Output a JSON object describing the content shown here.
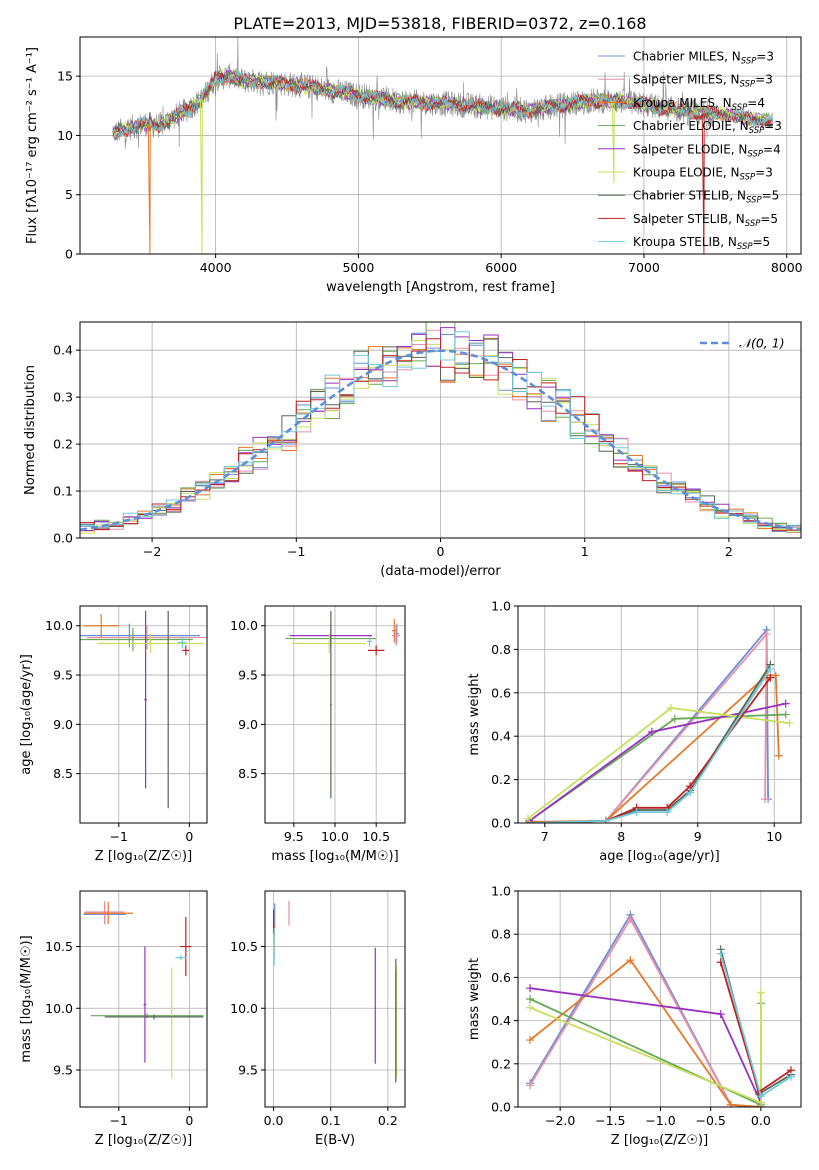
{
  "figure_title": "PLATE=2013, MJD=53818, FIBERID=0372, z=0.168",
  "colors": {
    "chabrier_miles": "#6a8fd8",
    "salpeter_miles": "#e990a8",
    "kroupa_miles": "#e5792a",
    "chabrier_elodie": "#66aa55",
    "salpeter_elodie": "#9b30c0",
    "kroupa_elodie": "#c8e060",
    "chabrier_stelib": "#556655",
    "salpeter_stelib": "#c02020",
    "kroupa_stelib": "#70c8d8",
    "spectrum_grey": "#888888",
    "normal_curve": "#5f8fd8"
  },
  "legend": {
    "entries": [
      {
        "prefix": "Chabrier MILES, N",
        "sub": "SSP",
        "suffix": "=3",
        "color": "#6a8fd8"
      },
      {
        "prefix": "Salpeter MILES, N",
        "sub": "SSP",
        "suffix": "=3",
        "color": "#e990a8"
      },
      {
        "prefix": "Kroupa MILES, N",
        "sub": "SSP",
        "suffix": "=4",
        "color": "#e5792a"
      },
      {
        "prefix": "Chabrier ELODIE, N",
        "sub": "SSP",
        "suffix": "=3",
        "color": "#66aa55"
      },
      {
        "prefix": "Salpeter ELODIE, N",
        "sub": "SSP",
        "suffix": "=4",
        "color": "#9b30c0"
      },
      {
        "prefix": "Kroupa ELODIE, N",
        "sub": "SSP",
        "suffix": "=3",
        "color": "#c8e060"
      },
      {
        "prefix": "Chabrier STELIB, N",
        "sub": "SSP",
        "suffix": "=5",
        "color": "#556655"
      },
      {
        "prefix": "Salpeter STELIB, N",
        "sub": "SSP",
        "suffix": "=5",
        "color": "#c02020"
      },
      {
        "prefix": "Kroupa STELIB, N",
        "sub": "SSP",
        "suffix": "=5",
        "color": "#70c8d8"
      }
    ]
  },
  "chart_data": [
    {
      "id": "spectrum",
      "type": "line",
      "xlabel": "wavelength [Angstrom, rest frame]",
      "ylabel": "Flux [fλ10⁻¹⁷ erg cm⁻² s⁻¹ A⁻¹]",
      "xlim": [
        3050,
        8100
      ],
      "ylim": [
        0,
        18.3
      ],
      "xticks": [
        4000,
        5000,
        6000,
        7000,
        8000
      ],
      "yticks": [
        0,
        5,
        10,
        15
      ],
      "legend_position": "right",
      "continuum": {
        "x": [
          3280,
          3400,
          3500,
          3600,
          3700,
          3800,
          3900,
          4000,
          4100,
          4200,
          4400,
          4600,
          4800,
          5000,
          5200,
          5400,
          5600,
          5800,
          6000,
          6200,
          6400,
          6600,
          6800,
          7000,
          7200,
          7400,
          7600,
          7800,
          7900
        ],
        "y": [
          10.2,
          10.6,
          11.0,
          10.8,
          11.5,
          12.2,
          13.0,
          14.8,
          15.0,
          14.6,
          14.5,
          14.2,
          13.8,
          13.4,
          13.0,
          12.8,
          12.7,
          12.5,
          12.3,
          12.1,
          12.5,
          12.9,
          12.9,
          12.6,
          12.2,
          11.9,
          11.7,
          11.3,
          11.2
        ]
      },
      "dips": [
        {
          "x": 3540,
          "y": 0.0,
          "color": "#e5792a"
        },
        {
          "x": 3905,
          "y": 0.0,
          "color": "#c8e060"
        },
        {
          "x": 7420,
          "y": 0.0,
          "color": "#c02020"
        },
        {
          "x": 6790,
          "y": 6.0,
          "color": "#c8e060"
        }
      ]
    },
    {
      "id": "residuals",
      "type": "histogram",
      "xlabel": "(data-model)/error",
      "ylabel": "Normed distribution",
      "xlim": [
        -2.5,
        2.5
      ],
      "ylim": [
        0,
        0.46
      ],
      "xticks": [
        -2,
        -1,
        0,
        1,
        2
      ],
      "yticks": [
        0.0,
        0.1,
        0.2,
        0.3,
        0.4
      ],
      "bin_width": 0.1,
      "curve_label": "𝒩(0, 1)",
      "legend_position": "top-right"
    },
    {
      "id": "age-vs-Z",
      "type": "errorbar",
      "xlabel": "Z [log₁₀(Z/Z☉)]",
      "ylabel": "age  [log₁₀(age/yr)]",
      "xlim": [
        -1.55,
        0.25
      ],
      "ylim": [
        8.0,
        10.2
      ],
      "xticks": [
        -1,
        0
      ],
      "yticks": [
        8.5,
        9.0,
        9.5,
        10.0
      ],
      "points": [
        {
          "x": -0.85,
          "xerr": 1.0,
          "y": 9.9,
          "yerr": 0.12,
          "color": "#6a8fd8"
        },
        {
          "x": -0.6,
          "xerr": 0.85,
          "y": 9.88,
          "yerr": 0.12,
          "color": "#e990a8"
        },
        {
          "x": -1.25,
          "xerr": 0.25,
          "y": 10.0,
          "yerr": 0.12,
          "color": "#e5792a"
        },
        {
          "x": -0.8,
          "xerr": 0.85,
          "y": 9.86,
          "yerr": 0.12,
          "color": "#66aa55"
        },
        {
          "x": -0.62,
          "xerr": 0.02,
          "y": 9.25,
          "yerr": 0.9,
          "color": "#9b30c0"
        },
        {
          "x": -0.55,
          "xerr": 0.75,
          "y": 9.82,
          "yerr": 0.1,
          "color": "#c8e060"
        },
        {
          "x": -0.3,
          "xerr": 0.01,
          "y": 9.15,
          "yerr": 1.0,
          "color": "#556655"
        },
        {
          "x": -0.05,
          "xerr": 0.05,
          "y": 9.75,
          "yerr": 0.05,
          "color": "#c02020"
        },
        {
          "x": -0.1,
          "xerr": 0.06,
          "y": 9.83,
          "yerr": 0.06,
          "color": "#70c8d8"
        }
      ]
    },
    {
      "id": "age-vs-mass",
      "type": "errorbar",
      "xlabel": "mass [log₁₀(M/M☉)]",
      "ylabel": "",
      "xlim": [
        9.15,
        10.85
      ],
      "ylim": [
        8.0,
        10.2
      ],
      "xticks": [
        9.5,
        10.0,
        10.5
      ],
      "yticks": [
        8.5,
        9.0,
        9.5,
        10.0
      ],
      "points": [
        {
          "x": 10.75,
          "xerr": 0.03,
          "y": 9.92,
          "yerr": 0.1,
          "color": "#6a8fd8"
        },
        {
          "x": 10.74,
          "xerr": 0.05,
          "y": 9.9,
          "yerr": 0.1,
          "color": "#e990a8"
        },
        {
          "x": 10.72,
          "xerr": 0.03,
          "y": 9.95,
          "yerr": 0.12,
          "color": "#e5792a"
        },
        {
          "x": 9.95,
          "xerr": 0.55,
          "y": 9.87,
          "yerr": 0.1,
          "color": "#66aa55"
        },
        {
          "x": 9.95,
          "xerr": 0.5,
          "y": 9.9,
          "yerr": 0.1,
          "color": "#9b30c0"
        },
        {
          "x": 9.93,
          "xerr": 0.45,
          "y": 9.82,
          "yerr": 0.1,
          "color": "#c8e060"
        },
        {
          "x": 9.95,
          "xerr": 0.01,
          "y": 9.2,
          "yerr": 0.95,
          "color": "#556655"
        },
        {
          "x": 10.5,
          "xerr": 0.1,
          "y": 9.75,
          "yerr": 0.05,
          "color": "#c02020"
        },
        {
          "x": 10.42,
          "xerr": 0.03,
          "y": 9.84,
          "yerr": 0.05,
          "color": "#70c8d8"
        }
      ]
    },
    {
      "id": "weight-vs-age",
      "type": "line",
      "xlabel": "age  [log₁₀(age/yr)]",
      "ylabel": "mass weight",
      "xlim": [
        6.65,
        10.35
      ],
      "ylim": [
        0.0,
        1.0
      ],
      "xticks": [
        7,
        8,
        9,
        10
      ],
      "yticks": [
        0.0,
        0.2,
        0.4,
        0.6,
        0.8,
        1.0
      ],
      "series": [
        {
          "color": "#6a8fd8",
          "x": [
            7.8,
            9.9,
            9.92
          ],
          "y": [
            0.01,
            0.89,
            0.11
          ]
        },
        {
          "color": "#e990a8",
          "x": [
            7.8,
            9.9,
            9.88
          ],
          "y": [
            0.01,
            0.87,
            0.11
          ]
        },
        {
          "color": "#e5792a",
          "x": [
            6.8,
            7.8,
            9.9,
            10.02,
            10.06
          ],
          "y": [
            0.005,
            0.01,
            0.68,
            0.68,
            0.31
          ]
        },
        {
          "color": "#66aa55",
          "x": [
            6.8,
            8.7,
            10.15
          ],
          "y": [
            0.01,
            0.48,
            0.5
          ]
        },
        {
          "color": "#9b30c0",
          "x": [
            6.8,
            8.4,
            10.15
          ],
          "y": [
            0.01,
            0.42,
            0.55
          ]
        },
        {
          "color": "#c8e060",
          "x": [
            6.78,
            8.65,
            10.2
          ],
          "y": [
            0.02,
            0.53,
            0.46
          ]
        },
        {
          "color": "#556655",
          "x": [
            6.8,
            7.8,
            8.2,
            8.6,
            8.9,
            9.95
          ],
          "y": [
            0.0,
            0.01,
            0.06,
            0.06,
            0.15,
            0.73
          ]
        },
        {
          "color": "#c02020",
          "x": [
            6.8,
            7.8,
            8.2,
            8.6,
            8.9,
            9.95
          ],
          "y": [
            0.0,
            0.01,
            0.07,
            0.07,
            0.17,
            0.67
          ]
        },
        {
          "color": "#70c8d8",
          "x": [
            6.8,
            7.8,
            8.2,
            8.6,
            8.9,
            9.95
          ],
          "y": [
            0.0,
            0.01,
            0.05,
            0.05,
            0.14,
            0.71
          ]
        }
      ]
    },
    {
      "id": "mass-vs-Z",
      "type": "errorbar",
      "xlabel": "Z [log₁₀(Z/Z☉)]",
      "ylabel": "mass [log₁₀(M/M☉)]",
      "xlim": [
        -1.55,
        0.25
      ],
      "ylim": [
        9.2,
        10.95
      ],
      "xticks": [
        -1,
        0
      ],
      "yticks": [
        9.5,
        10.0,
        10.5
      ],
      "points": [
        {
          "x": -1.2,
          "xerr": 0.3,
          "y": 10.76,
          "yerr": 0.08,
          "color": "#6a8fd8"
        },
        {
          "x": -1.2,
          "xerr": 0.28,
          "y": 10.78,
          "yerr": 0.09,
          "color": "#e990a8"
        },
        {
          "x": -1.15,
          "xerr": 0.35,
          "y": 10.77,
          "yerr": 0.09,
          "color": "#e5792a"
        },
        {
          "x": -0.6,
          "xerr": 0.8,
          "y": 9.94,
          "yerr": 0.02,
          "color": "#66aa55"
        },
        {
          "x": -0.63,
          "xerr": 0.02,
          "y": 10.03,
          "yerr": 0.47,
          "color": "#9b30c0"
        },
        {
          "x": -0.25,
          "xerr": 0.01,
          "y": 9.88,
          "yerr": 0.45,
          "color": "#c8e060"
        },
        {
          "x": -0.5,
          "xerr": 0.7,
          "y": 9.93,
          "yerr": 0.02,
          "color": "#556655"
        },
        {
          "x": -0.05,
          "xerr": 0.08,
          "y": 10.5,
          "yerr": 0.24,
          "color": "#c02020"
        },
        {
          "x": -0.12,
          "xerr": 0.08,
          "y": 10.41,
          "yerr": 0.02,
          "color": "#70c8d8"
        }
      ]
    },
    {
      "id": "mass-vs-EBV",
      "type": "errorbar",
      "xlabel": "E(B-V)",
      "ylabel": "",
      "xlim": [
        -0.015,
        0.23
      ],
      "ylim": [
        9.2,
        10.95
      ],
      "xticks": [
        0.0,
        0.1,
        0.2
      ],
      "yticks": [
        9.5,
        10.0,
        10.5
      ],
      "points": [
        {
          "x": 0.002,
          "y": 10.75,
          "yerr": 0.1,
          "color": "#6a8fd8"
        },
        {
          "x": 0.027,
          "y": 10.77,
          "yerr": 0.1,
          "color": "#e990a8"
        },
        {
          "x": 0.001,
          "y": 10.55,
          "yerr": 0.12,
          "color": "#e5792a"
        },
        {
          "x": 0.214,
          "y": 9.85,
          "yerr": 0.45,
          "color": "#66aa55"
        },
        {
          "x": 0.178,
          "y": 10.02,
          "yerr": 0.47,
          "color": "#9b30c0"
        },
        {
          "x": 0.215,
          "y": 9.9,
          "yerr": 0.45,
          "color": "#c8e060"
        },
        {
          "x": 0.214,
          "y": 9.9,
          "yerr": 0.5,
          "color": "#556655"
        },
        {
          "x": 0.0,
          "y": 10.7,
          "yerr": 0.1,
          "color": "#c02020"
        },
        {
          "x": 0.001,
          "y": 10.5,
          "yerr": 0.15,
          "color": "#70c8d8"
        }
      ]
    },
    {
      "id": "weight-vs-Z",
      "type": "line",
      "xlabel": "Z [log₁₀(Z/Z☉)]",
      "ylabel": "mass weight",
      "xlim": [
        -2.42,
        0.4
      ],
      "ylim": [
        0.0,
        1.0
      ],
      "xticks": [
        -2.0,
        -1.5,
        -1.0,
        -0.5,
        0.0
      ],
      "yticks": [
        0.0,
        0.2,
        0.4,
        0.6,
        0.8,
        1.0
      ],
      "series": [
        {
          "color": "#6a8fd8",
          "x": [
            -2.3,
            -1.3,
            -0.3,
            0.0
          ],
          "y": [
            0.11,
            0.89,
            0.01,
            0.0
          ]
        },
        {
          "color": "#e990a8",
          "x": [
            -2.3,
            -1.3,
            -0.3,
            0.0
          ],
          "y": [
            0.1,
            0.87,
            0.01,
            0.0
          ]
        },
        {
          "color": "#e5792a",
          "x": [
            -2.3,
            -1.3,
            -0.3,
            0.0
          ],
          "y": [
            0.31,
            0.68,
            0.01,
            0.0
          ]
        },
        {
          "color": "#66aa55",
          "x": [
            -2.3,
            0.0,
            0.0
          ],
          "y": [
            0.5,
            0.01,
            0.48
          ]
        },
        {
          "color": "#9b30c0",
          "x": [
            -2.3,
            -0.4,
            0.0
          ],
          "y": [
            0.55,
            0.43,
            0.02
          ]
        },
        {
          "color": "#c8e060",
          "x": [
            -2.3,
            0.0,
            0.0
          ],
          "y": [
            0.46,
            0.02,
            0.53
          ]
        },
        {
          "color": "#556655",
          "x": [
            -0.4,
            -0.02,
            0.3
          ],
          "y": [
            0.73,
            0.06,
            0.15
          ]
        },
        {
          "color": "#c02020",
          "x": [
            -0.4,
            -0.02,
            0.3
          ],
          "y": [
            0.67,
            0.07,
            0.17
          ]
        },
        {
          "color": "#70c8d8",
          "x": [
            -0.4,
            0.0,
            0.3
          ],
          "y": [
            0.71,
            0.05,
            0.14
          ]
        }
      ]
    }
  ]
}
